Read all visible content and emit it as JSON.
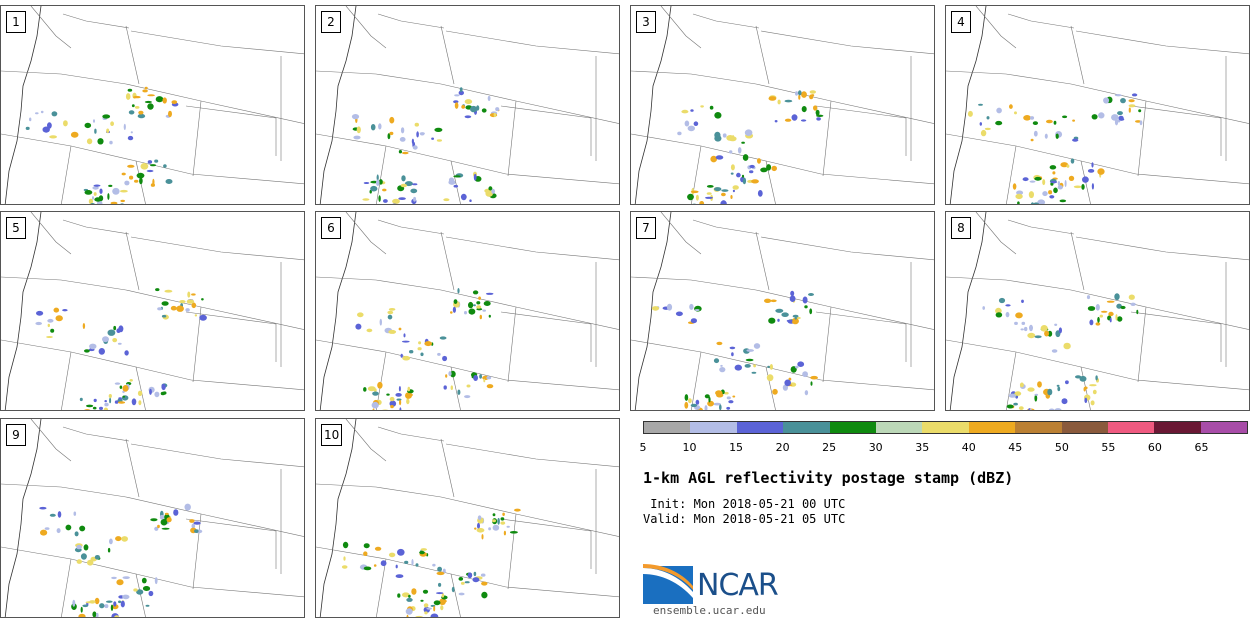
{
  "panels": [
    {
      "label": "1"
    },
    {
      "label": "2"
    },
    {
      "label": "3"
    },
    {
      "label": "4"
    },
    {
      "label": "5"
    },
    {
      "label": "6"
    },
    {
      "label": "7"
    },
    {
      "label": "8"
    },
    {
      "label": "9"
    },
    {
      "label": "10"
    }
  ],
  "colorbar": {
    "ticks": [
      "5",
      "10",
      "15",
      "20",
      "25",
      "30",
      "35",
      "40",
      "45",
      "50",
      "55",
      "60",
      "65"
    ],
    "colors": [
      "#a8a8a8",
      "#b3bde6",
      "#5b63d6",
      "#4a9199",
      "#0f8a0f",
      "#bcd8b8",
      "#ebdc6a",
      "#eeaa20",
      "#bb8033",
      "#8a5a3c",
      "#ef5a80",
      "#6a1834",
      "#a84da8"
    ]
  },
  "title": "1-km AGL reflectivity postage stamp (dBZ)",
  "init": " Init: Mon 2018-05-21 00 UTC",
  "valid": "Valid: Mon 2018-05-21 05 UTC",
  "logo": {
    "word": "NCAR",
    "site": "ensemble.ucar.edu"
  }
}
